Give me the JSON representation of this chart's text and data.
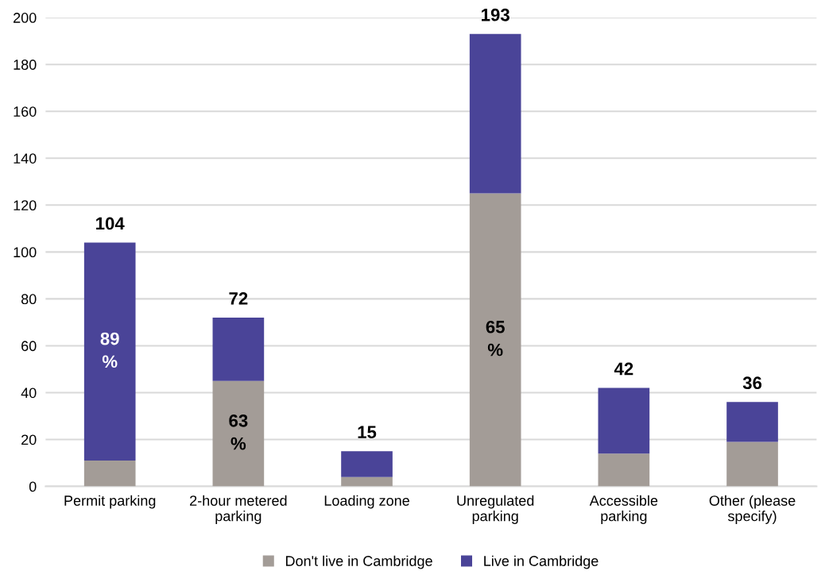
{
  "chart_data": {
    "type": "bar",
    "stacked": true,
    "categories": [
      "Permit parking",
      "2-hour metered\nparking",
      "Loading zone",
      "Unregulated\nparking",
      "Accessible\nparking",
      "Other (please\nspecify)"
    ],
    "series": [
      {
        "name": "Don't live in Cambridge",
        "color": "#a39c97",
        "values": [
          11,
          45,
          4,
          125,
          14,
          19
        ]
      },
      {
        "name": "Live in Cambridge",
        "color": "#4a4498",
        "values": [
          93,
          27,
          11,
          68,
          28,
          17
        ]
      }
    ],
    "annotations": [
      "89\n%",
      "63\n%",
      "65\n%"
    ],
    "totals": [
      "104",
      "72",
      "15",
      "193",
      "42",
      "36"
    ],
    "ylim": [
      0,
      200
    ],
    "yticks": [
      0,
      20,
      40,
      60,
      80,
      100,
      120,
      140,
      160,
      180,
      200
    ],
    "grid": "y",
    "legend": "bottom"
  }
}
